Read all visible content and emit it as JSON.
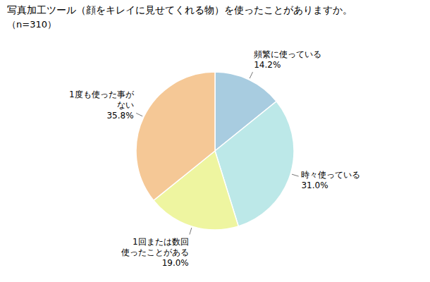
{
  "chart_data": {
    "type": "pie",
    "title": "写真加工ツール（顔をキレイに見せてくれる物）を使ったことがありますか。",
    "subtitle": "（n=310）",
    "categories": [
      "頻繁に使っている",
      "時々使っている",
      "1回または数回\n使ったことがある",
      "1度も使った事が\nない"
    ],
    "values": [
      14.2,
      31.0,
      19.0,
      35.8
    ],
    "value_labels": [
      "14.2%",
      "31.0%",
      "19.0%",
      "35.8%"
    ],
    "colors": [
      "#a8cce0",
      "#bce8e8",
      "#eef5a0",
      "#f5c896"
    ],
    "data_labels": true
  }
}
